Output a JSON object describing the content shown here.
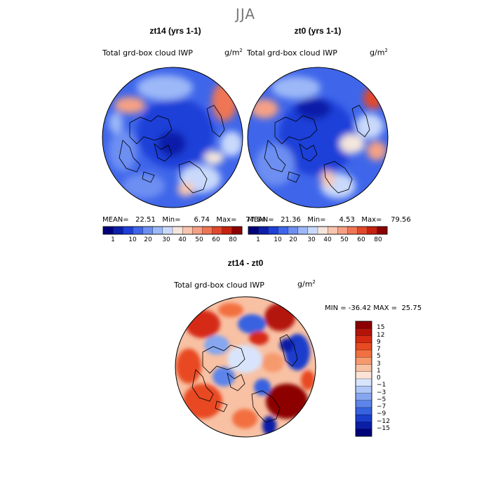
{
  "figure": {
    "title": "JJA"
  },
  "panels": [
    {
      "title": "zt14 (yrs 1-1)",
      "variable": "Total grd-box cloud IWP",
      "units_base": "g/m",
      "units_exp": "2",
      "stats": {
        "mean": "22.51",
        "min": "6.74",
        "max": "77.84"
      },
      "stats_text": "MEAN=   22.51   Min=      6.74   Max=    77.84"
    },
    {
      "title": "zt0 (yrs 1-1)",
      "variable": "Total grd-box cloud IWP",
      "units_base": "g/m",
      "units_exp": "2",
      "stats": {
        "mean": "21.36",
        "min": "4.53",
        "max": "79.56"
      },
      "stats_text": "MEAN=   21.36   Min=      4.53   Max=    79.56"
    },
    {
      "title": "zt14 - zt0",
      "variable": "Total grd-box cloud IWP",
      "units_base": "g/m",
      "units_exp": "2",
      "stats": {
        "min": "-36.42",
        "max": "25.75"
      },
      "stats_text": "MIN = -36.42 MAX =  25.75"
    }
  ],
  "abs_colorbar": {
    "tick_labels": [
      "1",
      "10",
      "20",
      "30",
      "40",
      "50",
      "60",
      "80"
    ],
    "colors": [
      "#00007a",
      "#0b1fa8",
      "#1e3fd8",
      "#3f66ea",
      "#6d8ff2",
      "#9cb8f7",
      "#c9d9fb",
      "#f4e6dc",
      "#f8c6b0",
      "#f5a085",
      "#ef7654",
      "#e2482b",
      "#c6220f",
      "#8c0000"
    ]
  },
  "diff_colorbar": {
    "tick_labels": [
      "15",
      "12",
      "9",
      "7",
      "5",
      "3",
      "1",
      "0",
      "−1",
      "−3",
      "−5",
      "−7",
      "−9",
      "−12",
      "−15"
    ],
    "colors": [
      "#8c0000",
      "#b3140a",
      "#d52a12",
      "#e84a22",
      "#f2703f",
      "#f69a6e",
      "#f8c1a4",
      "#fbe4d6",
      "#d8e4fb",
      "#b0c6f6",
      "#86a6f0",
      "#5c84ea",
      "#3762e0",
      "#1b3ecc",
      "#0a1fa6",
      "#00007a"
    ]
  }
}
